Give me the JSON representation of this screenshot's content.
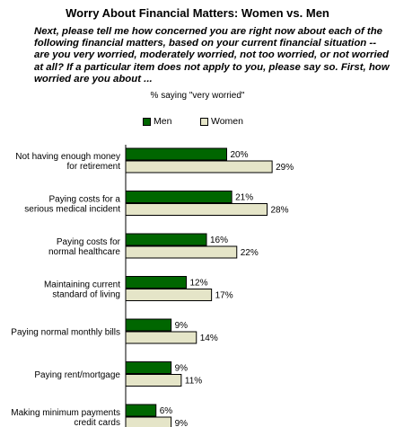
{
  "title": "Worry About Financial Matters: Women vs. Men",
  "question": "Next, please tell me how concerned you are right now about each of the following financial matters, based on your current financial situation -- are you very worried, moderately worried, not too worried, or not worried at all? If a particular item does not apply to you, please say so. First, how worried are you about ...",
  "colors": {
    "men": "#006600",
    "women": "#E5E5C8"
  },
  "chart_data": {
    "type": "bar",
    "orientation": "horizontal",
    "subtitle": "% saying \"very worried\"",
    "legend_position": "top",
    "categories": [
      [
        "Not having enough money",
        "for retirement"
      ],
      [
        "Paying costs for a",
        "serious medical incident"
      ],
      [
        "Paying costs for",
        "normal healthcare"
      ],
      [
        "Maintaining current",
        "standard of living"
      ],
      [
        "Paying normal monthly bills"
      ],
      [
        "Paying rent/mortgage"
      ],
      [
        "Making minimum payments",
        "credit cards"
      ]
    ],
    "series": [
      {
        "name": "Men",
        "values": [
          20,
          21,
          16,
          12,
          9,
          9,
          6
        ]
      },
      {
        "name": "Women",
        "values": [
          29,
          28,
          22,
          17,
          14,
          11,
          9
        ]
      }
    ],
    "value_suffix": "%",
    "xlim": [
      0,
      30
    ]
  }
}
